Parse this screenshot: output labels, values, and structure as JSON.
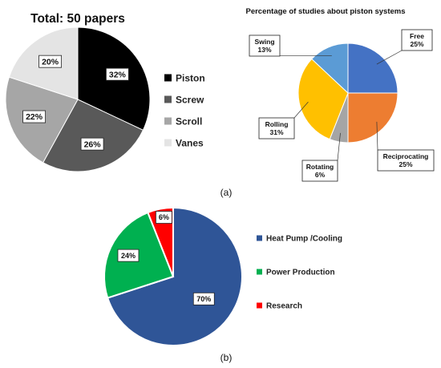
{
  "chart_data": [
    {
      "type": "pie",
      "title": "Total: 50 papers",
      "categories": [
        "Piston",
        "Screw",
        "Scroll",
        "Vanes"
      ],
      "values": [
        32,
        26,
        22,
        20
      ],
      "value_labels": [
        "32%",
        "26%",
        "22%",
        "20%"
      ],
      "colors": [
        "#000000",
        "#595959",
        "#a6a6a6",
        "#e4e4e4"
      ],
      "legend_position": "right"
    },
    {
      "type": "pie",
      "title": "Percentage of studies about piston systems",
      "categories": [
        "Free",
        "Reciprocating",
        "Rotating",
        "Rolling",
        "Swing"
      ],
      "values": [
        25,
        25,
        6,
        31,
        13
      ],
      "value_labels": [
        "25%",
        "25%",
        "6%",
        "31%",
        "13%"
      ],
      "colors": [
        "#4472c4",
        "#ed7d31",
        "#a5a5a5",
        "#ffc000",
        "#5b9bd5"
      ],
      "legend": "callout labels"
    },
    {
      "type": "pie",
      "title": "",
      "categories": [
        "Heat Pump /Cooling",
        "Power Production",
        "Research"
      ],
      "values": [
        70,
        24,
        6
      ],
      "value_labels": [
        "70%",
        "24%",
        "6%"
      ],
      "colors": [
        "#2f5597",
        "#00b050",
        "#ff0000"
      ],
      "legend_position": "right"
    }
  ],
  "captions": {
    "a": "(a)",
    "b": "(b)"
  }
}
